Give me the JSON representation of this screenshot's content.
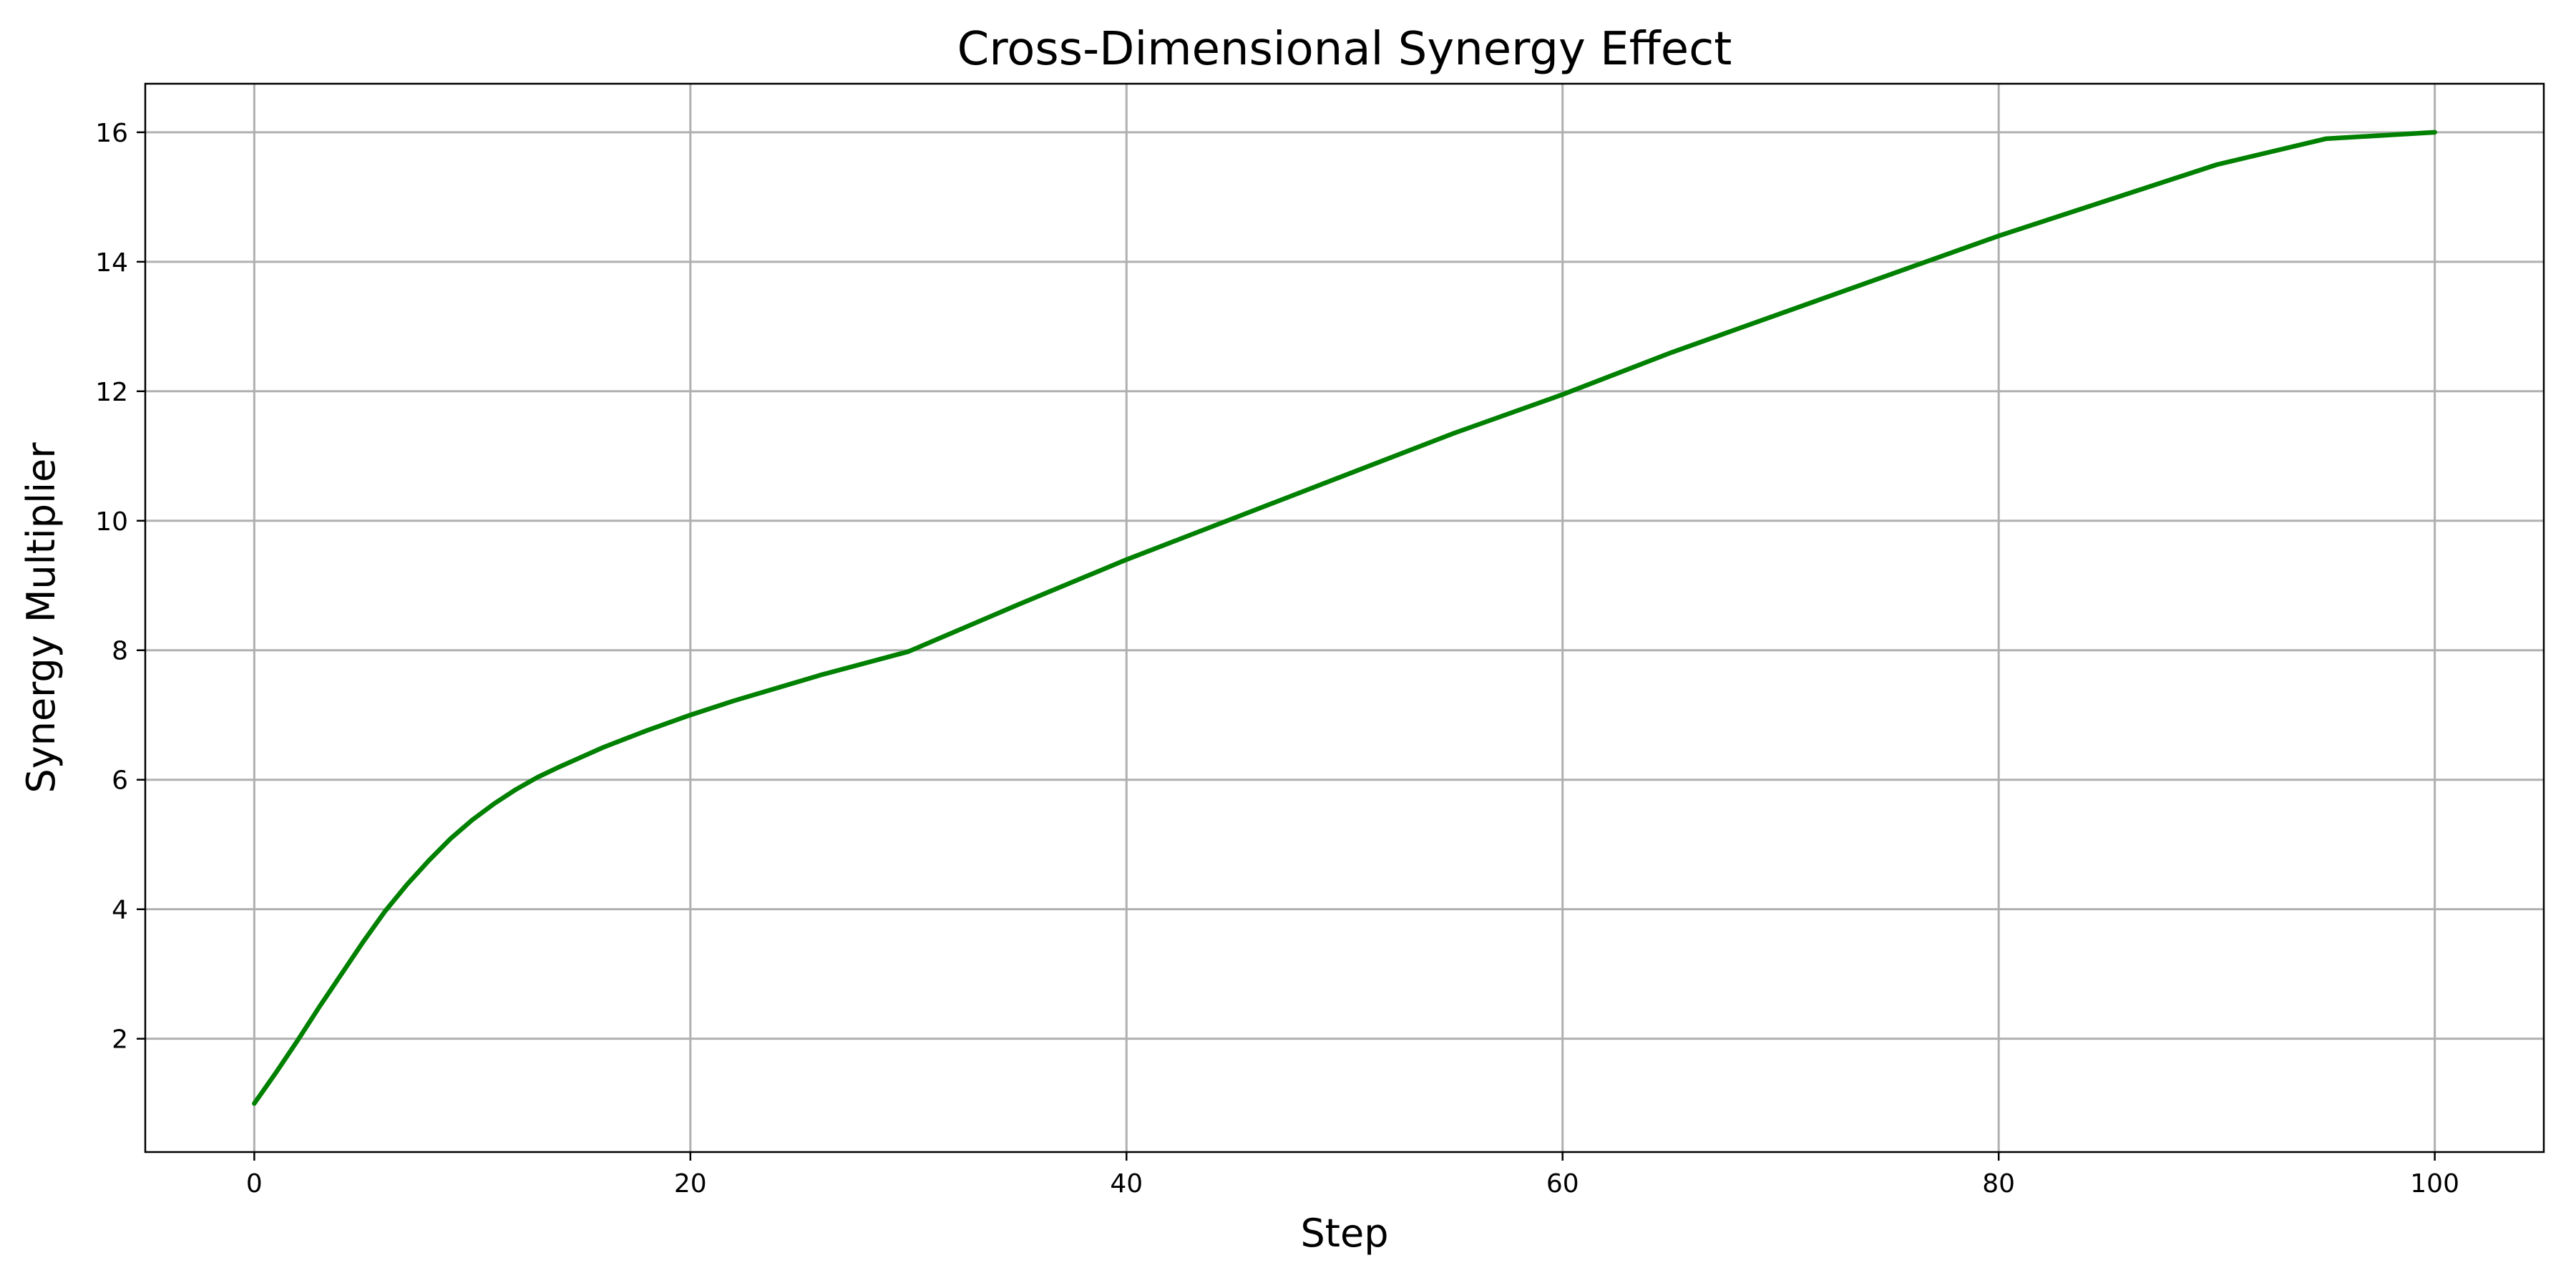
{
  "chart_data": {
    "type": "line",
    "title": "Cross-Dimensional Synergy Effect",
    "xlabel": "Step",
    "ylabel": "Synergy Multiplier",
    "xlim": [
      -5,
      105
    ],
    "ylim": [
      0.25,
      16.75
    ],
    "xticks": [
      0,
      20,
      40,
      60,
      80,
      100
    ],
    "yticks": [
      2,
      4,
      6,
      8,
      10,
      12,
      14,
      16
    ],
    "grid": true,
    "series": [
      {
        "color": "#008000",
        "x": [
          0,
          1,
          2,
          3,
          4,
          5,
          6,
          7,
          8,
          9,
          10,
          11,
          12,
          13,
          14,
          15,
          16,
          17,
          18,
          19,
          20,
          22,
          24,
          26,
          28,
          30,
          35,
          40,
          45,
          50,
          55,
          60,
          65,
          70,
          75,
          80,
          85,
          90,
          95,
          100
        ],
        "y": [
          1.0,
          1.48,
          1.98,
          2.5,
          3.0,
          3.5,
          3.97,
          4.38,
          4.75,
          5.09,
          5.38,
          5.63,
          5.85,
          6.04,
          6.2,
          6.35,
          6.5,
          6.63,
          6.76,
          6.88,
          7.0,
          7.22,
          7.42,
          7.62,
          7.8,
          7.98,
          8.7,
          9.4,
          10.05,
          10.7,
          11.35,
          11.95,
          12.6,
          13.2,
          13.8,
          14.4,
          14.95,
          15.5,
          15.9,
          16.0
        ]
      }
    ]
  }
}
